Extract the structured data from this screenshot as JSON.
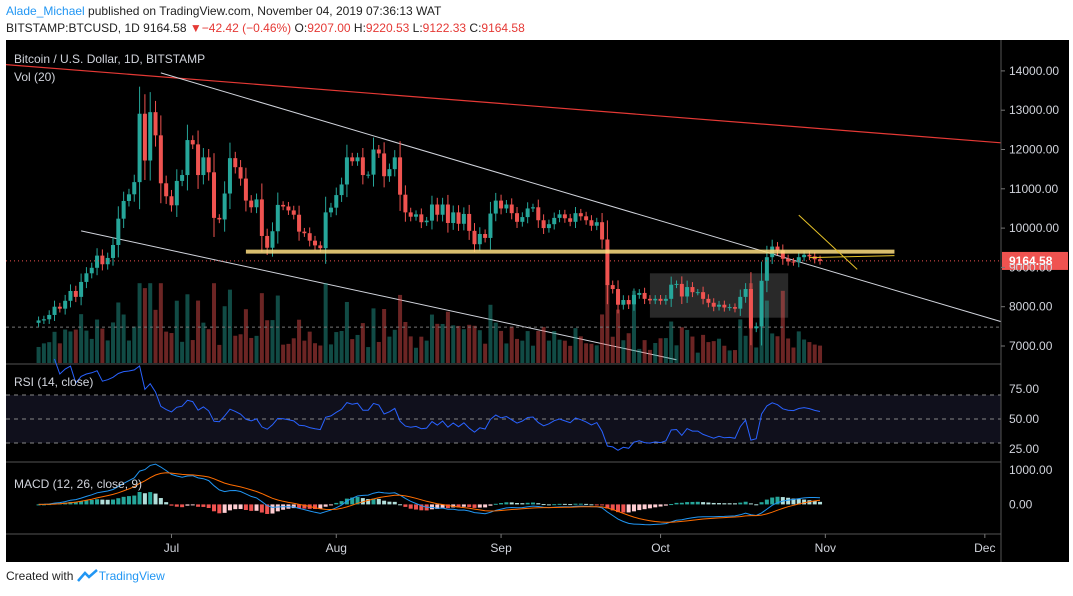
{
  "header": {
    "author": "Alade_Michael",
    "published_text": " published on TradingView.com, November 04, 2019 07:36:13 WAT",
    "symbol": "BITSTAMP:BTCUSD, 1D",
    "last": "9164.58",
    "change_arrow": "▼",
    "change": "−42.42 (−0.46%)",
    "o_label": "O:",
    "o": "9207.00",
    "h_label": "H:",
    "h": "9220.53",
    "l_label": "L:",
    "l": "9122.33",
    "c_label": "C:",
    "c": "9164.58"
  },
  "footer": {
    "created_with": "Created with ",
    "brand": "TradingView"
  },
  "colors": {
    "bull": "#26a69a",
    "bear": "#ef5350",
    "background": "#000000",
    "axis_text": "#d1d4dc",
    "rsi": "#2962ff",
    "macd": "#2196f3",
    "signal": "#ff6d00",
    "long_resistance": "#e53935",
    "support": "#ffe082",
    "channel": "#d1d4dc"
  },
  "chart_data": [
    {
      "type": "candlestick",
      "title": "Bitcoin / U.S. Dollar, 1D, BITSTAMP",
      "volume_label": "Vol (20)",
      "x_ticks": [
        "Jul",
        "Aug",
        "Sep",
        "Oct",
        "Nov",
        "Dec"
      ],
      "y_ticks": [
        "14000.00",
        "13000.00",
        "12000.00",
        "11000.00",
        "10000.00",
        "9000.00",
        "8000.00",
        "7000.00"
      ],
      "ylim": [
        6600,
        14600
      ],
      "last_price_label": "9164.58",
      "start_date": "2019-06-06",
      "close": [
        7650,
        7680,
        7790,
        8000,
        7950,
        8150,
        8400,
        8250,
        8630,
        8850,
        8990,
        9300,
        9080,
        9240,
        9570,
        10240,
        10690,
        10860,
        11170,
        12910,
        11720,
        12950,
        12360,
        11140,
        10810,
        10580,
        11200,
        11350,
        12240,
        12130,
        11350,
        11800,
        11420,
        10260,
        10220,
        10880,
        11780,
        11550,
        11260,
        10700,
        10530,
        10730,
        9800,
        9500,
        9920,
        10590,
        10550,
        10450,
        10340,
        9910,
        9870,
        9680,
        9560,
        9490,
        10400,
        10520,
        10840,
        11110,
        11800,
        11700,
        11800,
        11350,
        11360,
        12000,
        11900,
        11320,
        11500,
        11800,
        10850,
        10400,
        10290,
        10350,
        10150,
        10190,
        10600,
        10340,
        10600,
        10130,
        10400,
        10110,
        10360,
        9930,
        9590,
        9850,
        9750,
        10370,
        10700,
        10500,
        10600,
        10380,
        10160,
        10280,
        10500,
        10530,
        10200,
        10000,
        10100,
        10260,
        10350,
        10250,
        10160,
        10380,
        10300,
        10200,
        10060,
        10150,
        9710,
        8550,
        8450,
        8050,
        8170,
        8060,
        8300,
        8350,
        8200,
        8160,
        8200,
        8150,
        8200,
        8560,
        8580,
        8260,
        8500,
        8370,
        8370,
        8200,
        8100,
        8000,
        8050,
        7980,
        7990,
        7950,
        8250,
        8450,
        7450,
        7500,
        8660,
        9260,
        9530,
        9430,
        9220,
        9150,
        9130,
        9260,
        9320,
        9280,
        9207,
        9165
      ],
      "volume_note": "volume bars colored by candle direction",
      "annotations": [
        "long-term descending resistance (red)",
        "support band near 9400 (yellow)",
        "descending channel (white lines)",
        "consolidation box 7700-8900 (grey)",
        "descending trendline (yellow)"
      ]
    },
    {
      "type": "line",
      "title": "RSI (14, close)",
      "y_ticks": [
        "75.00",
        "50.00",
        "25.00"
      ],
      "ylim": [
        15,
        95
      ],
      "levels": [
        70,
        50,
        30
      ]
    },
    {
      "type": "bar+line",
      "title": "MACD (12, 26, close, 9)",
      "y_ticks": [
        "1000.00",
        "0.00"
      ],
      "ylim": [
        -800,
        1200
      ]
    }
  ]
}
